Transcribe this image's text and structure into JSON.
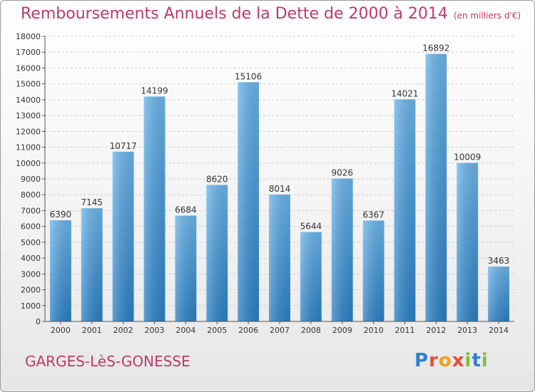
{
  "chart_data": {
    "type": "bar",
    "title": "Remboursements Annuels de la Dette de 2000 à 2014",
    "unit_label": "(en milliers d'€)",
    "categories": [
      "2000",
      "2001",
      "2002",
      "2003",
      "2004",
      "2005",
      "2006",
      "2007",
      "2008",
      "2009",
      "2010",
      "2011",
      "2012",
      "2013",
      "2014"
    ],
    "values": [
      6390,
      7145,
      10717,
      14199,
      6684,
      8620,
      15106,
      8014,
      5644,
      9026,
      6367,
      14021,
      16892,
      10009,
      3463
    ],
    "ylim": [
      0,
      18000
    ],
    "ytick_step": 1000,
    "grid": true,
    "xlabel": "",
    "ylabel": "",
    "bar_color_top": "#6ab4ea",
    "bar_color_bottom": "#2a7fc4"
  },
  "footer": {
    "town": "GARGES-LèS-GONESSE",
    "logo_letters": [
      "P",
      "r",
      "o",
      "x",
      "i",
      "t",
      "i"
    ],
    "logo_colors": [
      "#2f7fd0",
      "#e84e3c",
      "#f0a020",
      "#e84e3c",
      "#7cbf3a",
      "#2f7fd0",
      "#7cbf3a"
    ]
  },
  "colors": {
    "title": "#c0396b",
    "grid": "#cccccc",
    "axis": "#555555"
  }
}
